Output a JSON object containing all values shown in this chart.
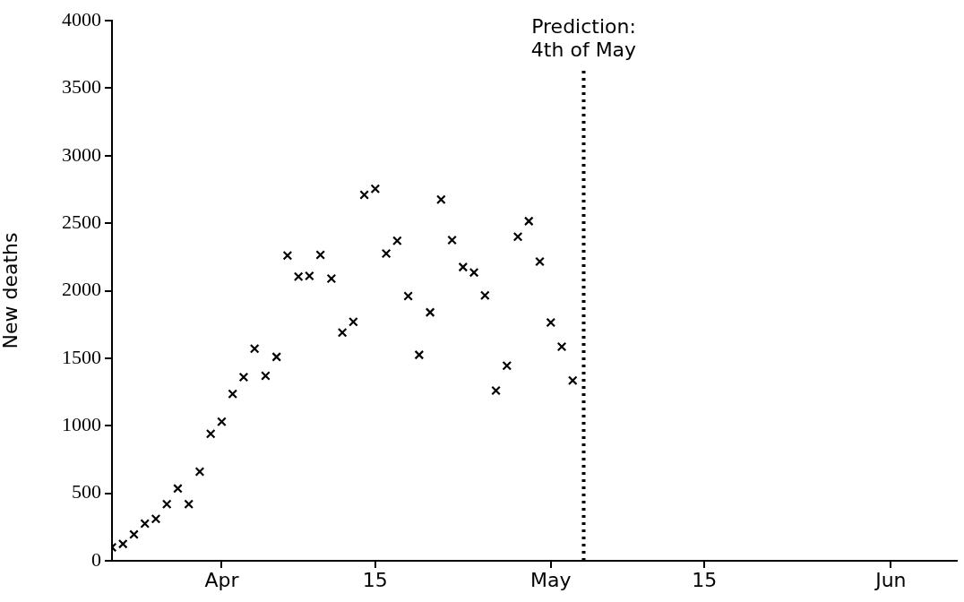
{
  "chart_data": {
    "type": "scatter",
    "ylabel": "New deaths",
    "x": [
      "--03-22",
      "--03-23",
      "--03-24",
      "--03-25",
      "--03-26",
      "--03-27",
      "--03-28",
      "--03-29",
      "--03-30",
      "--03-31",
      "--04-01",
      "--04-02",
      "--04-03",
      "--04-04",
      "--04-05",
      "--04-06",
      "--04-07",
      "--04-08",
      "--04-09",
      "--04-10",
      "--04-11",
      "--04-12",
      "--04-13",
      "--04-14",
      "--04-15",
      "--04-16",
      "--04-17",
      "--04-18",
      "--04-19",
      "--04-20",
      "--04-21",
      "--04-22",
      "--04-23",
      "--04-24",
      "--04-25",
      "--04-26",
      "--04-27",
      "--04-28",
      "--04-29",
      "--04-30",
      "--05-01",
      "--05-02",
      "--05-03"
    ],
    "series": [
      {
        "color": "#000000",
        "values": [
          100,
          125,
          195,
          275,
          310,
          420,
          535,
          420,
          660,
          940,
          1030,
          1235,
          1360,
          1570,
          1370,
          1510,
          2260,
          2105,
          2110,
          2265,
          2090,
          1690,
          1770,
          2710,
          2755,
          2275,
          2370,
          1960,
          1525,
          1840,
          2675,
          2375,
          2175,
          2135,
          1965,
          1260,
          1445,
          2400,
          2515,
          2215,
          1765,
          1585,
          1335
        ]
      }
    ],
    "marker": "cross",
    "xlim": [
      "--03-22",
      "--06-07"
    ],
    "xticks": [
      {
        "value": "--04-01",
        "label": "Apr"
      },
      {
        "value": "--04-15",
        "label": "15"
      },
      {
        "value": "--05-01",
        "label": "May"
      },
      {
        "value": "--05-15",
        "label": "15"
      },
      {
        "value": "--06-01",
        "label": "Jun"
      }
    ],
    "ylim": [
      0,
      4000
    ],
    "yticks": [
      0,
      500,
      1000,
      1500,
      2000,
      2500,
      3000,
      3500,
      4000
    ],
    "ref_lines": [
      {
        "axis": "x",
        "value": "--05-04",
        "label": "Prediction:\n4th of May",
        "color": "#000000",
        "line_style": "dotted"
      }
    ],
    "legend": false
  }
}
